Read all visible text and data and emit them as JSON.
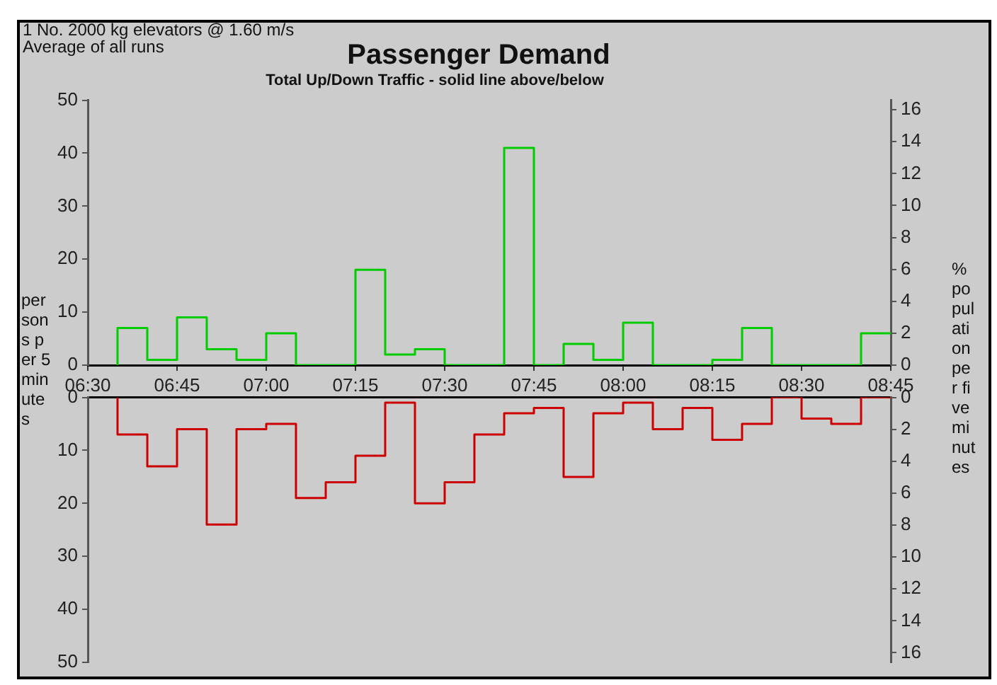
{
  "chart_data": [
    {
      "type": "step",
      "title": "Passenger Demand",
      "subtitle": "Total Up/Down Traffic - solid line above/below",
      "annotations": [
        "1 No. 2000 kg elevators @ 1.60 m/s",
        "Average of all runs"
      ],
      "ylabel": "persons per 5 minutes",
      "y2label": "% population per five minutes",
      "x": [
        6.5833,
        6.6667,
        6.75,
        6.8333,
        6.9167,
        7,
        7.0833,
        7.1667,
        7.25,
        7.3333,
        7.4167,
        7.5,
        7.5833,
        7.6667,
        7.75,
        7.8333,
        7.9167,
        8,
        8.0833,
        8.1667,
        8.25,
        8.3333,
        8.4167,
        8.5,
        8.5833,
        8.6667,
        8.75
      ],
      "series": [
        {
          "color": "#00cc00",
          "values": [
            0,
            7,
            1,
            9,
            3,
            1,
            6,
            0,
            0,
            18,
            2,
            3,
            0,
            0,
            41,
            0,
            4,
            1,
            8,
            0,
            0,
            1,
            7,
            0,
            0,
            0,
            6
          ]
        }
      ],
      "xlim": [
        6.5,
        8.75
      ],
      "xticks": [
        {
          "value": 6.5,
          "label": "06:30"
        },
        {
          "value": 6.75,
          "label": "06:45"
        },
        {
          "value": 7,
          "label": "07:00"
        },
        {
          "value": 7.25,
          "label": "07:15"
        },
        {
          "value": 7.5,
          "label": "07:30"
        },
        {
          "value": 7.75,
          "label": "07:45"
        },
        {
          "value": 8,
          "label": "08:00"
        },
        {
          "value": 8.25,
          "label": "08:15"
        },
        {
          "value": 8.5,
          "label": "08:30"
        },
        {
          "value": 8.75,
          "label": "08:45"
        }
      ],
      "ylim": [
        0,
        50
      ],
      "yticks": [
        0,
        10,
        20,
        30,
        40,
        50
      ],
      "y2lim": [
        0,
        16.6
      ],
      "y2ticks": [
        0,
        2,
        4,
        6,
        8,
        10,
        12,
        14,
        16
      ]
    },
    {
      "type": "step",
      "tick_labels": "y",
      "x": [
        6.5833,
        6.6667,
        6.75,
        6.8333,
        6.9167,
        7,
        7.0833,
        7.1667,
        7.25,
        7.3333,
        7.4167,
        7.5,
        7.5833,
        7.6667,
        7.75,
        7.8333,
        7.9167,
        8,
        8.0833,
        8.1667,
        8.25,
        8.3333,
        8.4167,
        8.5,
        8.5833,
        8.6667,
        8.75
      ],
      "series": [
        {
          "color": "#cc0000",
          "values": [
            0,
            7,
            13,
            6,
            24,
            6,
            5,
            19,
            16,
            11,
            1,
            20,
            16,
            7,
            3,
            2,
            15,
            3,
            1,
            6,
            2,
            8,
            5,
            0,
            4,
            5,
            0
          ]
        }
      ],
      "xlim": [
        6.5,
        8.75
      ],
      "ylim": [
        50,
        0
      ],
      "yticks": [
        0,
        10,
        20,
        30,
        40,
        50
      ],
      "y2lim": [
        16.6,
        0
      ],
      "y2ticks": [
        0,
        2,
        4,
        6,
        8,
        10,
        12,
        14,
        16
      ]
    }
  ]
}
